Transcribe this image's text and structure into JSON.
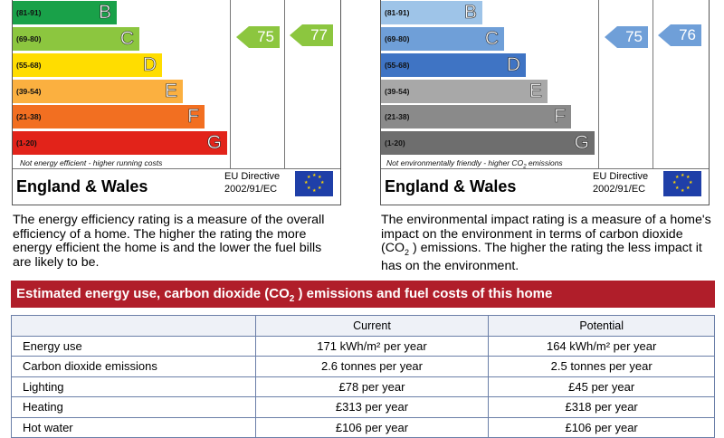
{
  "energy_panel": {
    "bands": [
      {
        "range": "(81-91)",
        "letter": "B",
        "color": "#19a149"
      },
      {
        "range": "(69-80)",
        "letter": "C",
        "color": "#8cc63f"
      },
      {
        "range": "(55-68)",
        "letter": "D",
        "color": "#ffdd00"
      },
      {
        "range": "(39-54)",
        "letter": "E",
        "color": "#fbb040"
      },
      {
        "range": "(21-38)",
        "letter": "F",
        "color": "#f26f21"
      },
      {
        "range": "(1-20)",
        "letter": "G",
        "color": "#e2231a"
      }
    ],
    "footnote": "Not energy efficient - higher running costs",
    "current": "75",
    "potential": "77",
    "current_color": "#8cc63f",
    "potential_color": "#8cc63f"
  },
  "environment_panel": {
    "bands": [
      {
        "range": "(81-91)",
        "letter": "B",
        "color": "#9ec4e8"
      },
      {
        "range": "(69-80)",
        "letter": "C",
        "color": "#6f9fd8"
      },
      {
        "range": "(55-68)",
        "letter": "D",
        "color": "#3f74c4"
      },
      {
        "range": "(39-54)",
        "letter": "E",
        "color": "#a8a8a8"
      },
      {
        "range": "(21-38)",
        "letter": "F",
        "color": "#8a8a8a"
      },
      {
        "range": "(1-20)",
        "letter": "G",
        "color": "#6e6e6e"
      }
    ],
    "footnote_prefix": "Not environmentally friendly - higher CO",
    "footnote_sub": "2",
    "footnote_suffix": " emissions",
    "current": "75",
    "potential": "76",
    "current_color": "#6f9fd8",
    "potential_color": "#6f9fd8"
  },
  "region": "England & Wales",
  "directive_line1": "EU Directive",
  "directive_line2": "2002/91/EC",
  "energy_description": "The energy efficiency rating is a measure of the overall efficiency of a home. The higher the rating the more energy efficient the home is and the lower the fuel bills are likely to be.",
  "env_description_1": "The environmental impact rating is a measure of a home's impact on the environment in terms of carbon dioxide (CO",
  "env_description_sub": "2",
  "env_description_2": " ) emissions. The higher the rating the less impact it has on the environment.",
  "banner_part1": "Estimated energy use, carbon dioxide (CO",
  "banner_sub": "2",
  "banner_part2": " ) emissions and fuel costs of this home",
  "table": {
    "headers": [
      "",
      "Current",
      "Potential"
    ],
    "rows": [
      {
        "label": "Energy use",
        "current": "171 kWh/m² per year",
        "potential": "164 kWh/m² per year"
      },
      {
        "label": "Carbon dioxide emissions",
        "current": "2.6 tonnes per year",
        "potential": "2.5 tonnes per year"
      },
      {
        "label": "Lighting",
        "current": "£78 per year",
        "potential": "£45 per year"
      },
      {
        "label": "Heating",
        "current": "£313 per year",
        "potential": "£318 per year"
      },
      {
        "label": "Hot water",
        "current": "£106 per year",
        "potential": "£106 per year"
      }
    ]
  }
}
